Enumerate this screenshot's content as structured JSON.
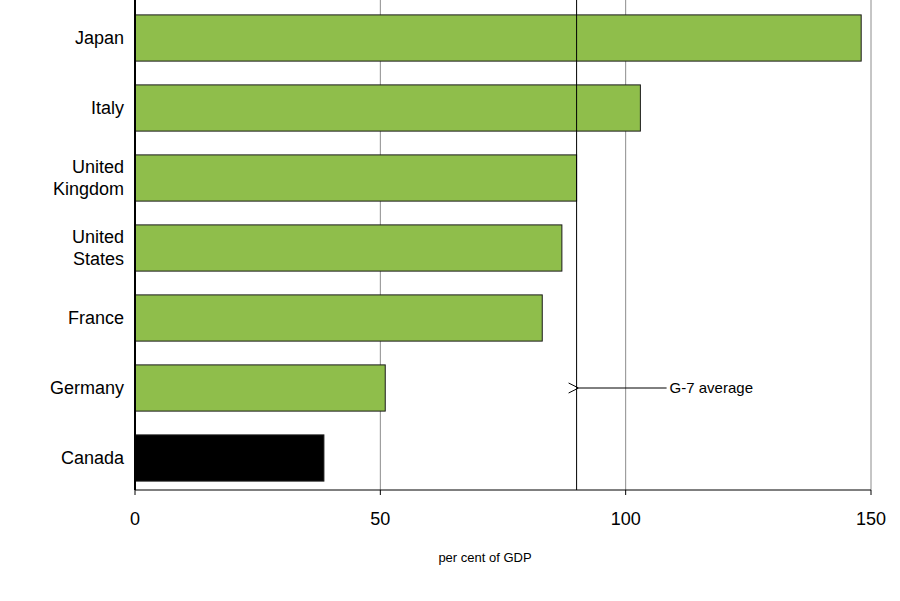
{
  "chart_data": {
    "type": "bar",
    "orientation": "horizontal",
    "categories": [
      "Japan",
      "Italy",
      "United Kingdom",
      "United States",
      "France",
      "Germany",
      "Canada"
    ],
    "values": [
      148,
      103,
      90,
      87,
      83,
      51,
      38.5
    ],
    "colors": [
      "#8fbe4b",
      "#8fbe4b",
      "#8fbe4b",
      "#8fbe4b",
      "#8fbe4b",
      "#8fbe4b",
      "#000000"
    ],
    "xlim": [
      0,
      150
    ],
    "xticks": [
      0,
      50,
      100,
      150
    ],
    "grid": true,
    "x_label": "per cent of GDP",
    "reference_line": {
      "value": 90,
      "label": "G-7 average"
    }
  }
}
